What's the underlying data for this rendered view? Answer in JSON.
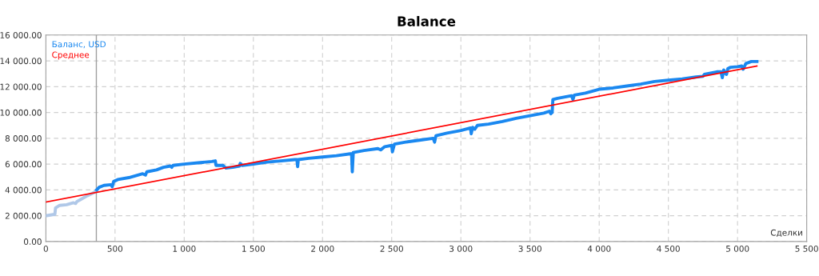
{
  "chart_data": {
    "type": "line",
    "title": "Balance",
    "xlabel": "Сделки",
    "xlim": [
      0,
      5500
    ],
    "ylim": [
      0,
      16000
    ],
    "xticks": [
      0,
      500,
      {
        "value": 1000,
        "label": "1 000"
      },
      {
        "value": 1500,
        "label": "1 500"
      },
      {
        "value": 2000,
        "label": "2 000"
      },
      {
        "value": 2500,
        "label": "2 500"
      },
      {
        "value": 3000,
        "label": "3 000"
      },
      {
        "value": 3500,
        "label": "3 500"
      },
      {
        "value": 4000,
        "label": "4 000"
      },
      {
        "value": 4500,
        "label": "4 500"
      },
      {
        "value": 5000,
        "label": "5 000"
      },
      {
        "value": 5500,
        "label": "5 500"
      }
    ],
    "yticks": [
      {
        "value": 0,
        "label": "0.00"
      },
      {
        "value": 2000,
        "label": "2 000.00"
      },
      {
        "value": 4000,
        "label": "4 000.00"
      },
      {
        "value": 6000,
        "label": "6 000.00"
      },
      {
        "value": 8000,
        "label": "8 000.00"
      },
      {
        "value": 10000,
        "label": "10 000.00"
      },
      {
        "value": 12000,
        "label": "12 000.00"
      },
      {
        "value": 14000,
        "label": "14 000.00"
      },
      {
        "value": 16000,
        "label": "16 000.00"
      }
    ],
    "grid": true,
    "legend": "top left",
    "line_style": "solid",
    "marker": "none",
    "ref_lines": [
      {
        "axis": "x",
        "value": 365,
        "label": null,
        "color": "#a0a0a0"
      }
    ],
    "series": [
      {
        "color": "#b0c8e8",
        "x": [
          0,
          60,
          65,
          70,
          100,
          150,
          200,
          215,
          225,
          250,
          300,
          350,
          368
        ],
        "values": [
          2000,
          2100,
          2100,
          2600,
          2800,
          2850,
          3000,
          2950,
          3100,
          3250,
          3550,
          3800,
          4000
        ]
      },
      {
        "name": "Баланс, USD",
        "color": "#1a88f0",
        "x": [
          368,
          385,
          420,
          470,
          480,
          490,
          520,
          600,
          650,
          700,
          720,
          730,
          800,
          850,
          900,
          910,
          920,
          1000,
          1100,
          1200,
          1225,
          1230,
          1280,
          1300,
          1350,
          1400,
          1405,
          1420,
          1500,
          1600,
          1700,
          1800,
          1815,
          1820,
          1825,
          1900,
          2000,
          2100,
          2200,
          2210,
          2215,
          2222,
          2300,
          2400,
          2420,
          2450,
          2500,
          2505,
          2520,
          2600,
          2700,
          2800,
          2810,
          2820,
          2900,
          3000,
          3070,
          3075,
          3085,
          3100,
          3120,
          3200,
          3300,
          3400,
          3500,
          3600,
          3640,
          3650,
          3660,
          3665,
          3700,
          3800,
          3810,
          3820,
          3900,
          4000,
          4100,
          4200,
          4300,
          4400,
          4500,
          4600,
          4700,
          4750,
          4760,
          4850,
          4880,
          4890,
          4900,
          4910,
          4920,
          4930,
          4950,
          5000,
          5030,
          5040,
          5060,
          5100,
          5140
        ],
        "values": [
          4000,
          4200,
          4350,
          4400,
          4250,
          4650,
          4800,
          4950,
          5100,
          5250,
          5150,
          5400,
          5550,
          5750,
          5850,
          5750,
          5900,
          6000,
          6100,
          6200,
          6250,
          5900,
          5900,
          5700,
          5750,
          5850,
          6050,
          5900,
          6000,
          6150,
          6250,
          6350,
          6350,
          5800,
          6350,
          6450,
          6550,
          6650,
          6800,
          6800,
          5400,
          6900,
          7050,
          7200,
          7100,
          7350,
          7450,
          6950,
          7550,
          7700,
          7850,
          8000,
          7700,
          8200,
          8400,
          8600,
          8800,
          8350,
          8850,
          8700,
          9000,
          9100,
          9300,
          9550,
          9750,
          9950,
          10100,
          9900,
          10000,
          11000,
          11100,
          11300,
          11000,
          11350,
          11500,
          11800,
          11900,
          12050,
          12200,
          12400,
          12500,
          12600,
          12750,
          12800,
          12950,
          13150,
          13150,
          12700,
          13300,
          13050,
          12950,
          13400,
          13500,
          13550,
          13600,
          13350,
          13800,
          13950,
          13950
        ]
      },
      {
        "name": "Среднее",
        "type": "line",
        "color": "#ff0000",
        "x": [
          0,
          5140
        ],
        "values": [
          3050,
          13600
        ]
      }
    ]
  }
}
